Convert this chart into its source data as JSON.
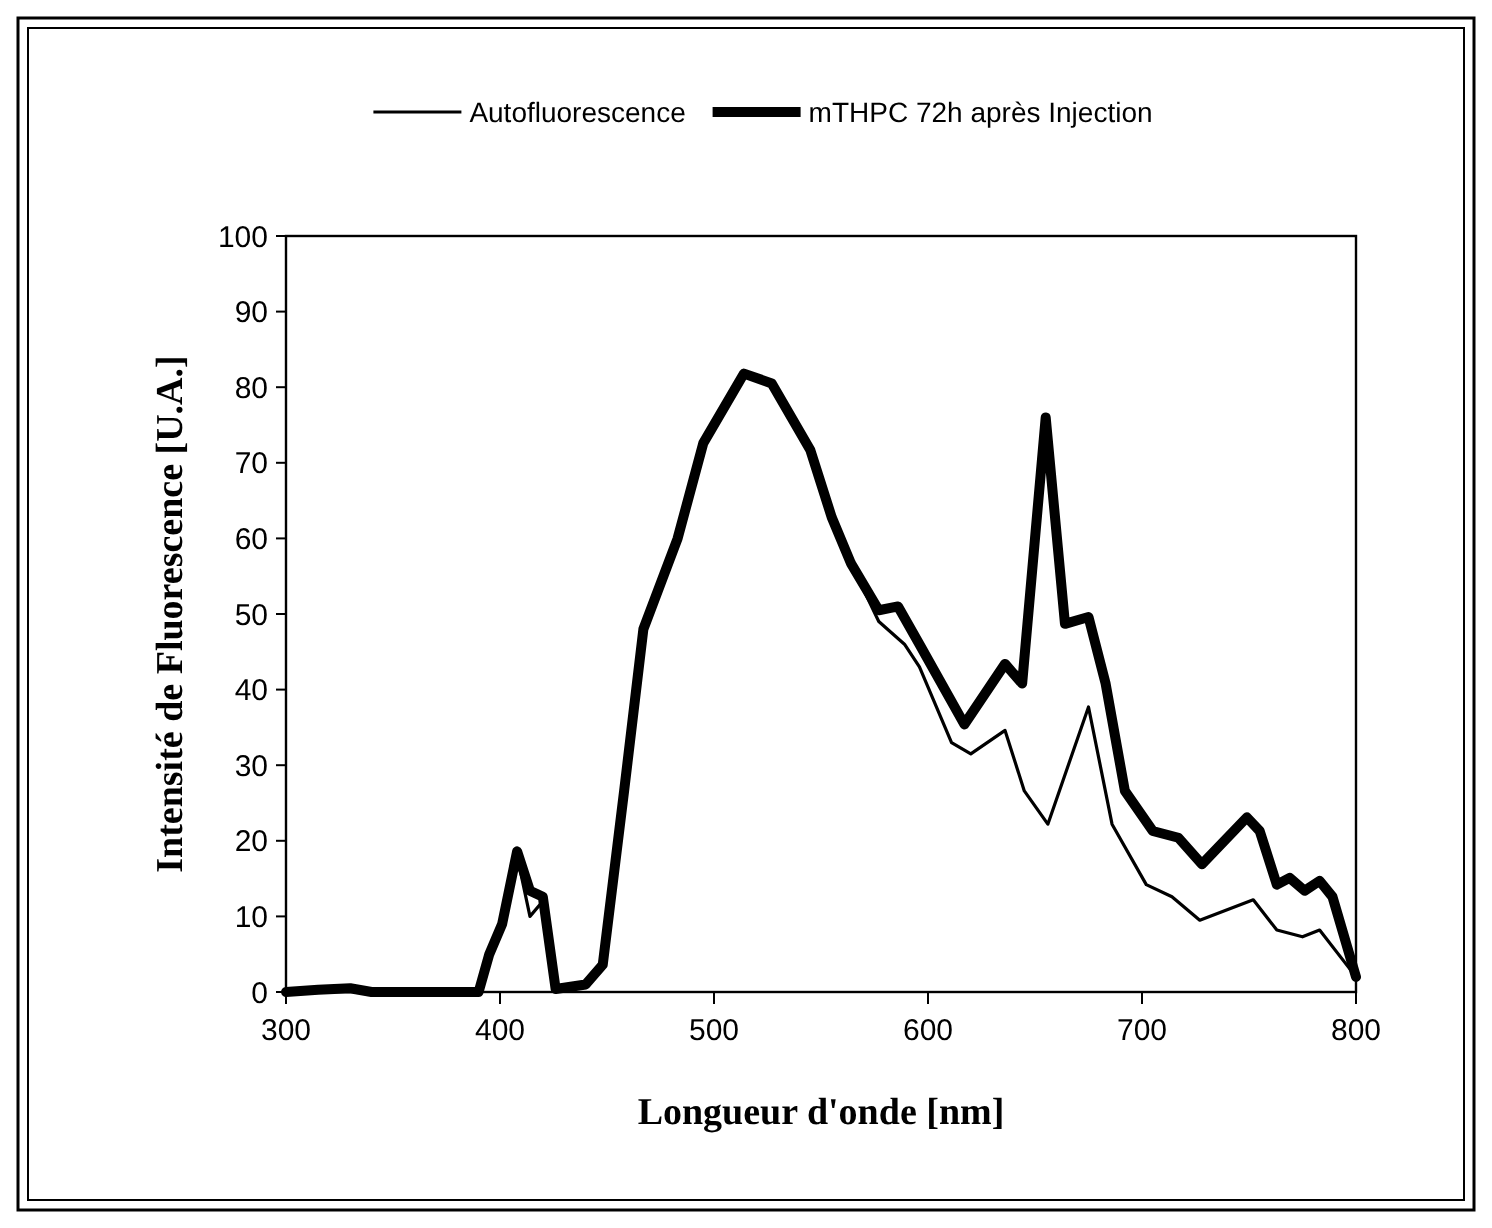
{
  "chart_data": {
    "type": "line",
    "xlabel": "Longueur d'onde [nm]",
    "ylabel": "Intensité de Fluorescence [U.A.]",
    "xlim": [
      300,
      800
    ],
    "xticks": [
      300,
      400,
      500,
      600,
      700,
      800
    ],
    "ylim": [
      0,
      100
    ],
    "yticks": [
      0,
      10,
      20,
      30,
      40,
      50,
      60,
      70,
      80,
      90,
      100
    ],
    "legend": "top",
    "grid": false,
    "series": [
      {
        "name": "Autofluorescence",
        "color": "#000000",
        "x": [
          300,
          315,
          330,
          340,
          360,
          390,
          395,
          401,
          408,
          414,
          420,
          426,
          440,
          448,
          458,
          467,
          483,
          495,
          514,
          527,
          545,
          555,
          564,
          577,
          589,
          596,
          611,
          620,
          636,
          645,
          656,
          675,
          686,
          702,
          714,
          727,
          752,
          763,
          775,
          783,
          800
        ],
        "values": [
          0,
          0.3,
          0.5,
          0,
          0,
          0,
          5,
          9,
          18,
          10,
          12,
          0.4,
          1,
          3.6,
          26.6,
          48,
          60,
          72.6,
          81.8,
          80.5,
          71.7,
          62.8,
          56.7,
          49,
          46,
          43,
          33,
          31.5,
          34.6,
          26.6,
          22.2,
          37.7,
          22.2,
          14.2,
          12.6,
          9.5,
          12.2,
          8.2,
          7.3,
          8.2,
          2
        ]
      },
      {
        "name": "mTHPC 72h après Injection",
        "color": "#000000",
        "x": [
          300,
          315,
          330,
          340,
          360,
          390,
          395,
          401,
          408,
          414,
          420,
          426,
          440,
          448,
          458,
          467,
          483,
          495,
          514,
          527,
          545,
          555,
          564,
          577,
          586,
          596,
          617,
          636,
          644,
          655,
          664,
          675,
          683,
          692,
          705,
          717,
          728,
          749,
          755,
          763,
          769,
          776,
          783,
          789,
          800
        ],
        "values": [
          0,
          0.3,
          0.5,
          0,
          0,
          0,
          5,
          9,
          18.6,
          13.4,
          12.6,
          0.4,
          1,
          3.6,
          26.6,
          48,
          60,
          72.6,
          81.8,
          80.5,
          71.7,
          62.8,
          56.7,
          50.5,
          51,
          46,
          35.4,
          43.4,
          40.8,
          76,
          48.7,
          49.6,
          40.8,
          26.6,
          21.3,
          20.4,
          16.9,
          23.1,
          21.3,
          14.2,
          15.1,
          13.4,
          14.7,
          12.6,
          2
        ]
      }
    ]
  }
}
